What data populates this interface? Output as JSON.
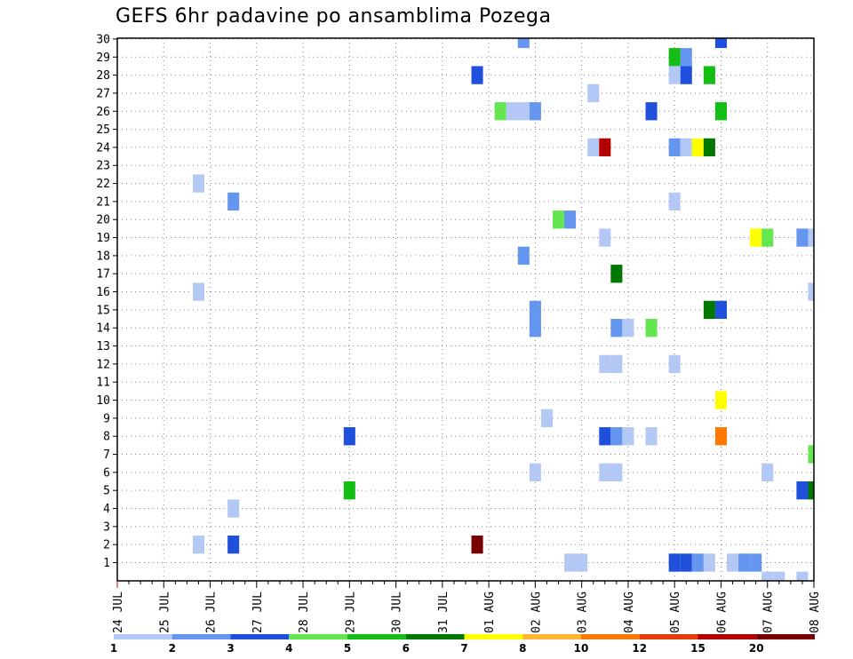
{
  "chart_data": {
    "type": "heatmap",
    "title": "GEFS 6hr padavine po ansamblima Pozega",
    "y_categories": [
      1,
      2,
      3,
      4,
      5,
      6,
      7,
      8,
      9,
      10,
      11,
      12,
      13,
      14,
      15,
      16,
      17,
      18,
      19,
      20,
      21,
      22,
      23,
      24,
      25,
      26,
      27,
      28,
      29,
      30
    ],
    "x_tick_labels": [
      "24 JUL",
      "25 JUL",
      "26 JUL",
      "27 JUL",
      "28 JUL",
      "29 JUL",
      "30 JUL",
      "31 JUL",
      "01 AUG",
      "02 AUG",
      "03 AUG",
      "04 AUG",
      "05 AUG",
      "06 AUG",
      "07 AUG",
      "08 AUG"
    ],
    "x_unit": "6-hour steps from 24 JUL 00Z",
    "x_range": [
      0,
      60
    ],
    "grid": true,
    "colorbar": {
      "labels": [
        "1",
        "2",
        "3",
        "4",
        "5",
        "6",
        "7",
        "8",
        "10",
        "12",
        "15",
        "20"
      ],
      "colors": [
        "#b4c8f5",
        "#6496f0",
        "#1e50dc",
        "#64e650",
        "#14be14",
        "#007800",
        "#ffff00",
        "#ffb432",
        "#ff7800",
        "#e63c0a",
        "#b40000",
        "#780000"
      ]
    },
    "cells": [
      {
        "member": 30,
        "step": 35,
        "v": 2
      },
      {
        "member": 30,
        "step": 52,
        "v": 3
      },
      {
        "member": 29,
        "step": 48,
        "v": 5
      },
      {
        "member": 29,
        "step": 49,
        "v": 2
      },
      {
        "member": 28,
        "step": 31,
        "v": 3
      },
      {
        "member": 28,
        "step": 48,
        "v": 1
      },
      {
        "member": 28,
        "step": 49,
        "v": 3
      },
      {
        "member": 28,
        "step": 51,
        "v": 5
      },
      {
        "member": 27,
        "step": 41,
        "v": 1
      },
      {
        "member": 26,
        "step": 33,
        "v": 4
      },
      {
        "member": 26,
        "step": 34,
        "v": 1
      },
      {
        "member": 26,
        "step": 35,
        "v": 1
      },
      {
        "member": 26,
        "step": 36,
        "v": 2
      },
      {
        "member": 26,
        "step": 46,
        "v": 3
      },
      {
        "member": 26,
        "step": 52,
        "v": 5
      },
      {
        "member": 24,
        "step": 41,
        "v": 1
      },
      {
        "member": 24,
        "step": 42,
        "v": 15
      },
      {
        "member": 24,
        "step": 48,
        "v": 2
      },
      {
        "member": 24,
        "step": 49,
        "v": 1
      },
      {
        "member": 24,
        "step": 50,
        "v": 7
      },
      {
        "member": 24,
        "step": 51,
        "v": 6
      },
      {
        "member": 22,
        "step": 7,
        "v": 1
      },
      {
        "member": 21,
        "step": 10,
        "v": 2
      },
      {
        "member": 21,
        "step": 48,
        "v": 1
      },
      {
        "member": 20,
        "step": 38,
        "v": 4
      },
      {
        "member": 20,
        "step": 39,
        "v": 2
      },
      {
        "member": 19,
        "step": 42,
        "v": 1
      },
      {
        "member": 19,
        "step": 55,
        "v": 7
      },
      {
        "member": 19,
        "step": 56,
        "v": 4
      },
      {
        "member": 19,
        "step": 59,
        "v": 2
      },
      {
        "member": 19,
        "step": 60,
        "v": 1
      },
      {
        "member": 18,
        "step": 35,
        "v": 2
      },
      {
        "member": 17,
        "step": 43,
        "v": 6
      },
      {
        "member": 16,
        "step": 7,
        "v": 1
      },
      {
        "member": 16,
        "step": 60,
        "v": 1
      },
      {
        "member": 15,
        "step": 36,
        "v": 2
      },
      {
        "member": 15,
        "step": 51,
        "v": 6
      },
      {
        "member": 15,
        "step": 52,
        "v": 3
      },
      {
        "member": 14,
        "step": 36,
        "v": 2
      },
      {
        "member": 14,
        "step": 43,
        "v": 2
      },
      {
        "member": 14,
        "step": 44,
        "v": 1
      },
      {
        "member": 14,
        "step": 46,
        "v": 4
      },
      {
        "member": 12,
        "step": 42,
        "v": 1
      },
      {
        "member": 12,
        "step": 43,
        "v": 1
      },
      {
        "member": 12,
        "step": 48,
        "v": 1
      },
      {
        "member": 10,
        "step": 52,
        "v": 7
      },
      {
        "member": 9,
        "step": 37,
        "v": 1
      },
      {
        "member": 8,
        "step": 20,
        "v": 3
      },
      {
        "member": 8,
        "step": 42,
        "v": 3
      },
      {
        "member": 8,
        "step": 43,
        "v": 2
      },
      {
        "member": 8,
        "step": 44,
        "v": 1
      },
      {
        "member": 8,
        "step": 46,
        "v": 1
      },
      {
        "member": 8,
        "step": 52,
        "v": 10
      },
      {
        "member": 7,
        "step": 60,
        "v": 4
      },
      {
        "member": 6,
        "step": 36,
        "v": 1
      },
      {
        "member": 6,
        "step": 42,
        "v": 1
      },
      {
        "member": 6,
        "step": 43,
        "v": 1
      },
      {
        "member": 6,
        "step": 56,
        "v": 1
      },
      {
        "member": 5,
        "step": 20,
        "v": 5
      },
      {
        "member": 5,
        "step": 59,
        "v": 3
      },
      {
        "member": 5,
        "step": 60,
        "v": 6
      },
      {
        "member": 4,
        "step": 10,
        "v": 1
      },
      {
        "member": 2,
        "step": 7,
        "v": 1
      },
      {
        "member": 2,
        "step": 10,
        "v": 3
      },
      {
        "member": 2,
        "step": 31,
        "v": 20
      },
      {
        "member": 1,
        "step": 39,
        "v": 1
      },
      {
        "member": 1,
        "step": 40,
        "v": 1
      },
      {
        "member": 1,
        "step": 48,
        "v": 3
      },
      {
        "member": 1,
        "step": 49,
        "v": 3
      },
      {
        "member": 1,
        "step": 50,
        "v": 2
      },
      {
        "member": 1,
        "step": 51,
        "v": 1
      },
      {
        "member": 1,
        "step": 53,
        "v": 1
      },
      {
        "member": 1,
        "step": 54,
        "v": 2
      },
      {
        "member": 1,
        "step": 55,
        "v": 2
      },
      {
        "member": 0,
        "step": 56,
        "v": 1
      },
      {
        "member": 0,
        "step": 57,
        "v": 1
      },
      {
        "member": 0,
        "step": 59,
        "v": 1
      }
    ]
  }
}
